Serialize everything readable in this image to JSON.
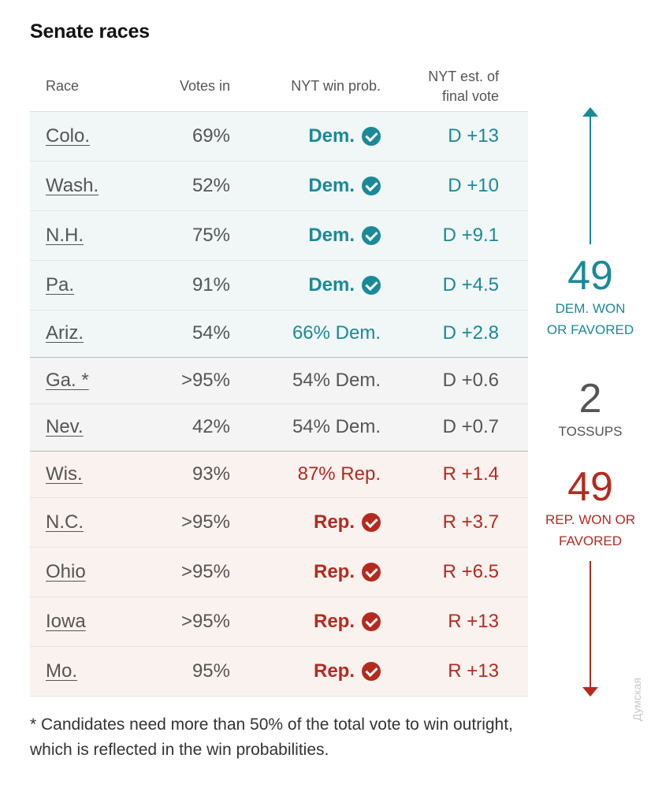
{
  "title": "Senate races",
  "headers": {
    "race": "Race",
    "votes": "Votes in",
    "prob": "NYT win prob.",
    "est_line1": "NYT est. of",
    "est_line2": "final vote"
  },
  "rows": [
    {
      "race": "Colo.",
      "votes": "69%",
      "prob": "Dem.",
      "called": true,
      "est": "D +13",
      "party": "dem"
    },
    {
      "race": "Wash.",
      "votes": "52%",
      "prob": "Dem.",
      "called": true,
      "est": "D +10",
      "party": "dem"
    },
    {
      "race": "N.H.",
      "votes": "75%",
      "prob": "Dem.",
      "called": true,
      "est": "D +9.1",
      "party": "dem"
    },
    {
      "race": "Pa.",
      "votes": "91%",
      "prob": "Dem.",
      "called": true,
      "est": "D +4.5",
      "party": "dem"
    },
    {
      "race": "Ariz.",
      "votes": "54%",
      "prob": "66% Dem.",
      "called": false,
      "est": "D +2.8",
      "party": "dem"
    },
    {
      "race": "Ga. *",
      "votes": ">95%",
      "prob": "54% Dem.",
      "called": false,
      "est": "D +0.6",
      "party": "toss"
    },
    {
      "race": "Nev.",
      "votes": "42%",
      "prob": "54% Dem.",
      "called": false,
      "est": "D +0.7",
      "party": "toss"
    },
    {
      "race": "Wis.",
      "votes": "93%",
      "prob": "87% Rep.",
      "called": false,
      "est": "R +1.4",
      "party": "rep"
    },
    {
      "race": "N.C.",
      "votes": ">95%",
      "prob": "Rep.",
      "called": true,
      "est": "R +3.7",
      "party": "rep"
    },
    {
      "race": "Ohio",
      "votes": ">95%",
      "prob": "Rep.",
      "called": true,
      "est": "R +6.5",
      "party": "rep"
    },
    {
      "race": "Iowa",
      "votes": ">95%",
      "prob": "Rep.",
      "called": true,
      "est": "R +13",
      "party": "rep"
    },
    {
      "race": "Mo.",
      "votes": "95%",
      "prob": "Rep.",
      "called": true,
      "est": "R +13",
      "party": "rep"
    }
  ],
  "summary": {
    "dem_count": "49",
    "dem_label_1": "DEM. WON",
    "dem_label_2": "OR FAVORED",
    "toss_count": "2",
    "toss_label": "TOSSUPS",
    "rep_count": "49",
    "rep_label_1": "REP. WON OR",
    "rep_label_2": "FAVORED"
  },
  "footnote_1": "* Candidates need more than 50% of the total vote to win outright,",
  "footnote_2": "which is reflected in the win probabilities.",
  "watermark": "Думская",
  "colors": {
    "dem": "#1a8a98",
    "rep": "#b52a1f",
    "toss": "#555555"
  }
}
